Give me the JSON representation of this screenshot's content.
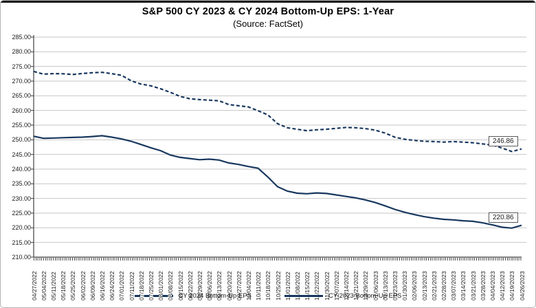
{
  "header": {
    "title": "S&P 500 CY 2023 & CY 2024 Bottom-Up EPS: 1-Year",
    "subtitle": "(Source: FactSet)"
  },
  "colors": {
    "line": "#17375e",
    "gridline": "#c6c6c6",
    "axis": "#404040",
    "top_border": "#1a1a1a"
  },
  "chart_data": {
    "type": "line",
    "title": "S&P 500 CY 2023 & CY 2024 Bottom-Up EPS: 1-Year",
    "subtitle": "(Source: FactSet)",
    "ylim": [
      210,
      285
    ],
    "ytick_step": 5,
    "grid": true,
    "legend_position": "bottom",
    "ytick_labels": [
      "285.00",
      "280.00",
      "275.00",
      "270.00",
      "265.00",
      "260.00",
      "255.00",
      "250.00",
      "245.00",
      "240.00",
      "235.00",
      "230.00",
      "225.00",
      "220.00",
      "215.00",
      "210.00"
    ],
    "categories": [
      "04/27/2022",
      "05/04/2022",
      "05/11/2022",
      "05/18/2022",
      "05/25/2022",
      "06/02/2022",
      "06/09/2022",
      "06/16/2022",
      "06/24/2022",
      "07/01/2022",
      "07/11/2022",
      "07/18/2022",
      "07/25/2022",
      "08/01/2022",
      "08/08/2022",
      "08/15/2022",
      "08/22/2022",
      "08/29/2022",
      "09/06/2022",
      "09/13/2022",
      "09/20/2022",
      "09/27/2022",
      "10/04/2022",
      "10/11/2022",
      "10/18/2022",
      "10/25/2022",
      "11/01/2022",
      "11/08/2022",
      "11/15/2022",
      "11/22/2022",
      "11/30/2022",
      "12/07/2022",
      "12/14/2022",
      "12/21/2022",
      "12/29/2022",
      "01/06/2023",
      "01/13/2023",
      "01/23/2023",
      "01/30/2023",
      "02/06/2023",
      "02/13/2023",
      "02/21/2023",
      "02/28/2023",
      "03/07/2023",
      "03/14/2023",
      "03/21/2023",
      "03/28/2023",
      "04/04/2023",
      "04/12/2023",
      "04/19/2023",
      "04/26/2023"
    ],
    "series": [
      {
        "name": "CY 2024 Bottom-Up EPS",
        "style": "dashed",
        "end_label": "246.86",
        "values": [
          273.3,
          272.4,
          272.55,
          272.5,
          272.25,
          272.6,
          272.85,
          273.0,
          272.55,
          272.0,
          270.1,
          269.0,
          268.4,
          267.4,
          266.2,
          264.8,
          264.0,
          263.7,
          263.5,
          263.3,
          262.0,
          261.6,
          261.2,
          259.9,
          258.5,
          255.5,
          254.1,
          253.6,
          253.1,
          253.4,
          253.6,
          253.9,
          254.2,
          254.1,
          253.8,
          253.3,
          252.3,
          250.9,
          250.2,
          249.8,
          249.5,
          249.4,
          249.2,
          249.4,
          249.2,
          249.0,
          248.6,
          248.2,
          247.2,
          246.0,
          246.86
        ]
      },
      {
        "name": "CY 2023 Bottom-Up EPS",
        "style": "solid",
        "end_label": "220.86",
        "values": [
          251.2,
          250.5,
          250.6,
          250.7,
          250.8,
          250.9,
          251.1,
          251.4,
          250.9,
          250.3,
          249.5,
          248.4,
          247.3,
          246.3,
          244.8,
          244.0,
          243.6,
          243.2,
          243.4,
          243.1,
          242.1,
          241.6,
          240.9,
          240.3,
          237.3,
          234.0,
          232.5,
          231.8,
          231.6,
          231.9,
          231.7,
          231.2,
          230.7,
          230.2,
          229.5,
          228.6,
          227.5,
          226.3,
          225.3,
          224.5,
          223.8,
          223.3,
          222.9,
          222.7,
          222.4,
          222.2,
          221.7,
          221.0,
          220.2,
          219.9,
          220.86
        ]
      }
    ]
  }
}
